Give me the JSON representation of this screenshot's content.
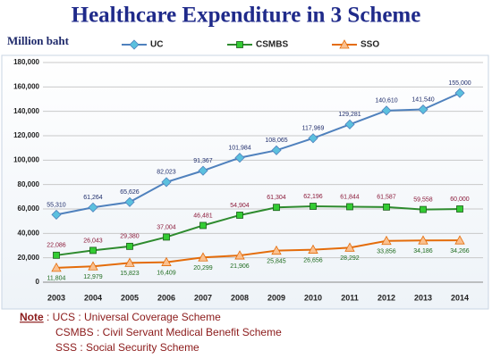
{
  "chart_data": {
    "type": "line",
    "title": "Healthcare Expenditure in 3 Scheme",
    "y_label": "Million baht",
    "categories": [
      "2003",
      "2004",
      "2005",
      "2006",
      "2007",
      "2008",
      "2009",
      "2010",
      "2011",
      "2012",
      "2013",
      "2014"
    ],
    "series": [
      {
        "name": "UC",
        "color": "#4f81bd",
        "marker": "diamond",
        "marker_color": "#5bc0de",
        "label_color": "#1f2d6b",
        "label_position": "above",
        "values": [
          55310,
          61264,
          65626,
          82023,
          91367,
          101984,
          108065,
          117969,
          129281,
          140610,
          141540,
          155000
        ],
        "value_labels": [
          "55,310",
          "61,264",
          "65,626",
          "82,023",
          "91,367",
          "101,984",
          "108,065",
          "117,969",
          "129,281",
          "140,610",
          "141,540",
          "155,000"
        ]
      },
      {
        "name": "CSMBS",
        "color": "#2e8b2e",
        "marker": "square",
        "marker_color": "#33cc33",
        "label_color": "#8b1a3a",
        "label_position": "above",
        "values": [
          22086,
          26043,
          29380,
          37004,
          46481,
          54904,
          61304,
          62196,
          61844,
          61587,
          59558,
          60000
        ],
        "value_labels": [
          "22,086",
          "26,043",
          "29,380",
          "37,004",
          "46,481",
          "54,904",
          "61,304",
          "62,196",
          "61,844",
          "61,587",
          "59,558",
          "60,000"
        ]
      },
      {
        "name": "SSO",
        "color": "#e46c0a",
        "marker": "triangle",
        "marker_color": "#fac08f",
        "label_color": "#1e6b1e",
        "label_position": "below",
        "values": [
          11804,
          12979,
          15823,
          16409,
          20299,
          21906,
          25845,
          26656,
          28292,
          33856,
          34186,
          34266
        ],
        "value_labels": [
          "11,804",
          "12,979",
          "15,823",
          "16,409",
          "20,299",
          "21,906",
          "25,845",
          "26,656",
          "28,292",
          "33,856",
          "34,186",
          "34,266"
        ]
      }
    ],
    "ylim": [
      0,
      180000
    ],
    "yticks": [
      0,
      {
        "value": 20000,
        "label": "20,000"
      },
      {
        "value": 40000,
        "label": "40,000"
      },
      {
        "value": 60000,
        "label": "60,000"
      },
      {
        "value": 80000,
        "label": "80,000"
      },
      {
        "value": 100000,
        "label": "100,000"
      },
      {
        "value": 120000,
        "label": "120,000"
      },
      {
        "value": 140000,
        "label": "140,000"
      },
      {
        "value": 160000,
        "label": "160,000"
      },
      {
        "value": 180000,
        "label": "180,000"
      }
    ],
    "grid": true,
    "legend": "top"
  },
  "note": {
    "label": "Note",
    "lines": [
      ": UCS : Universal Coverage Scheme",
      "CSMBS : Civil Servant Medical Benefit Scheme",
      "SSS : Social Security Scheme"
    ]
  }
}
